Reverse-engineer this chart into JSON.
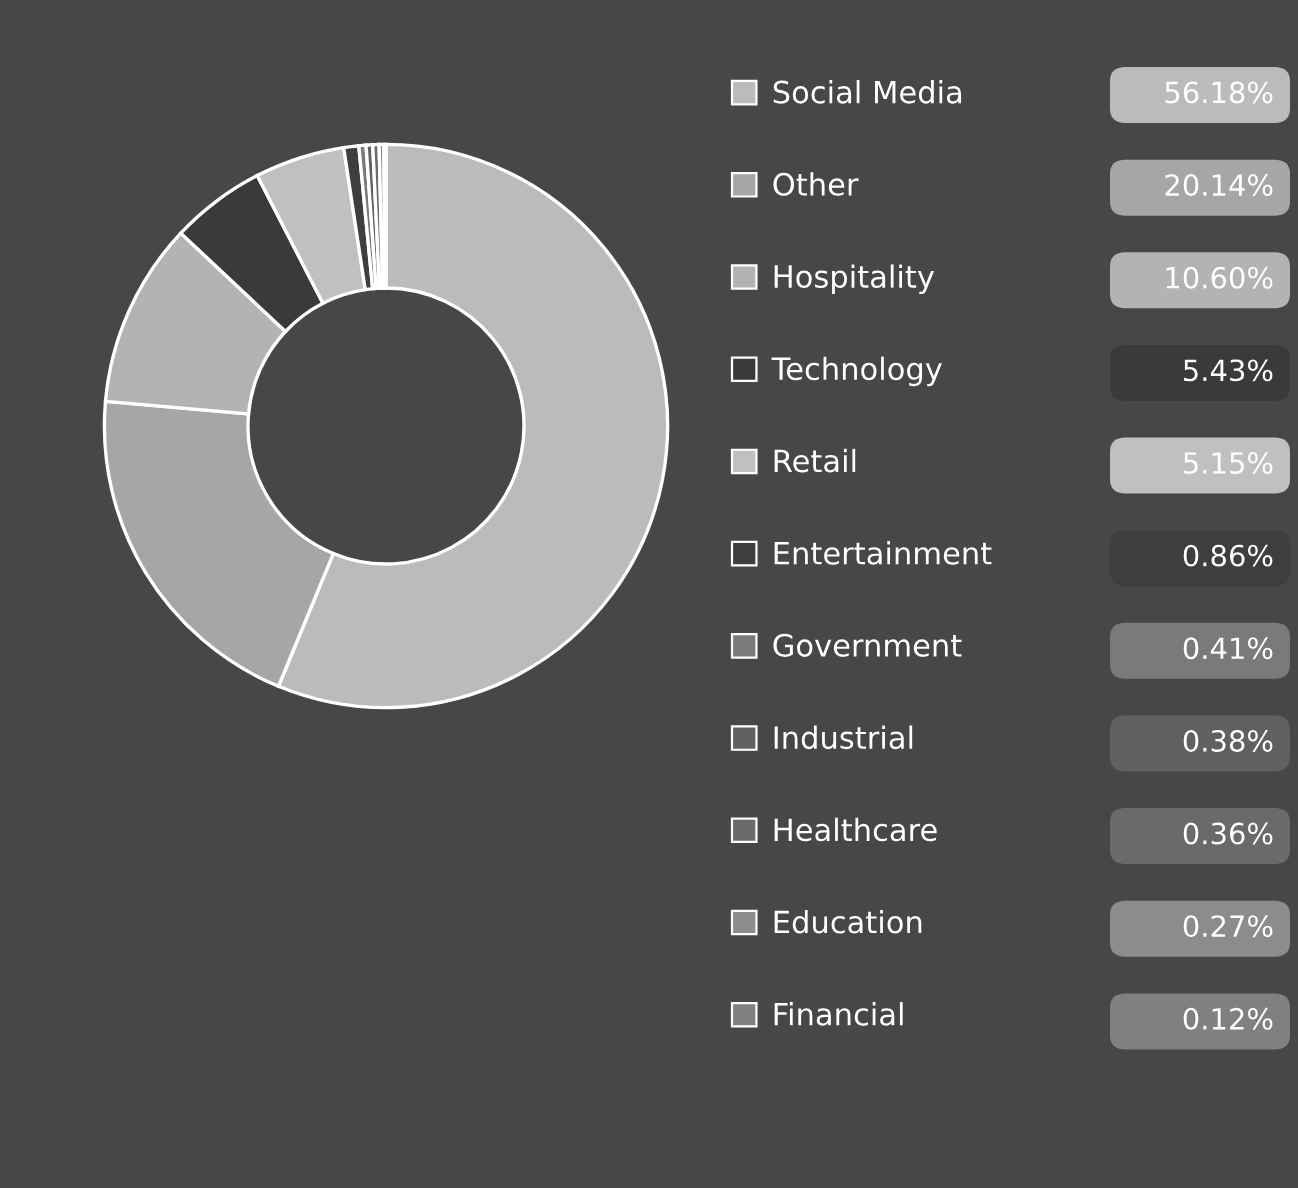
{
  "chart_data": {
    "type": "donut",
    "categories": [
      "Social Media",
      "Other",
      "Hospitality",
      "Technology",
      "Retail",
      "Entertainment",
      "Government",
      "Industrial",
      "Healthcare",
      "Education",
      "Financial"
    ],
    "values": [
      56.18,
      20.14,
      10.6,
      5.43,
      5.15,
      0.86,
      0.41,
      0.38,
      0.36,
      0.27,
      0.12
    ],
    "colors": [
      "#bbbbbb",
      "#a6a6a6",
      "#b3b3b3",
      "#3a3a3a",
      "#c0c0c0",
      "#3e3e3e",
      "#7a7a7a",
      "#606060",
      "#6a6a6a",
      "#8c8c8c",
      "#808080"
    ],
    "value_labels": [
      "56.18%",
      "20.14%",
      "10.60%",
      "5.43%",
      "5.15%",
      "0.86%",
      "0.41%",
      "0.38%",
      "0.36%",
      "0.27%",
      "0.12%"
    ],
    "legend": "right"
  }
}
